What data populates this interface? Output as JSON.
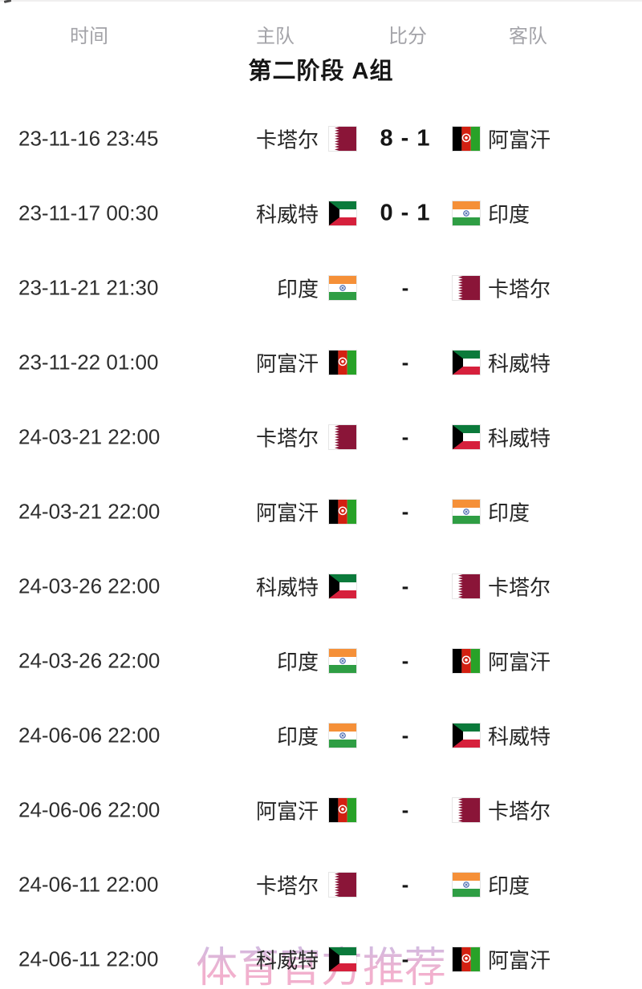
{
  "page": {
    "group_title": "第二阶段 A组",
    "watermark": "体育官方推荐"
  },
  "header": {
    "columns": [
      {
        "key": "time",
        "label": "时间"
      },
      {
        "key": "home",
        "label": "主队"
      },
      {
        "key": "score",
        "label": "比分"
      },
      {
        "key": "away",
        "label": "客队"
      }
    ]
  },
  "flags": {
    "qatar": {
      "team": "卡塔尔",
      "maroon": "#8a1538",
      "white": "#ffffff"
    },
    "afghanistan": {
      "team": "阿富汗",
      "black": "#000000",
      "red": "#d32011",
      "green": "#28a228",
      "white": "#ffffff"
    },
    "kuwait": {
      "team": "科威特",
      "green": "#0b7a3b",
      "white": "#ffffff",
      "red": "#d6203c",
      "black": "#000000"
    },
    "india": {
      "team": "印度",
      "saffron": "#f59038",
      "white": "#ffffff",
      "green": "#2f9e44",
      "navy": "#2a4fa0"
    }
  },
  "matches": [
    {
      "time": "23-11-16 23:45",
      "home": "卡塔尔",
      "home_flag": "qatar",
      "score": "8 - 1",
      "away": "阿富汗",
      "away_flag": "afghanistan"
    },
    {
      "time": "23-11-17 00:30",
      "home": "科威特",
      "home_flag": "kuwait",
      "score": "0 - 1",
      "away": "印度",
      "away_flag": "india"
    },
    {
      "time": "23-11-21 21:30",
      "home": "印度",
      "home_flag": "india",
      "score": "-",
      "away": "卡塔尔",
      "away_flag": "qatar"
    },
    {
      "time": "23-11-22 01:00",
      "home": "阿富汗",
      "home_flag": "afghanistan",
      "score": "-",
      "away": "科威特",
      "away_flag": "kuwait"
    },
    {
      "time": "24-03-21 22:00",
      "home": "卡塔尔",
      "home_flag": "qatar",
      "score": "-",
      "away": "科威特",
      "away_flag": "kuwait"
    },
    {
      "time": "24-03-21 22:00",
      "home": "阿富汗",
      "home_flag": "afghanistan",
      "score": "-",
      "away": "印度",
      "away_flag": "india"
    },
    {
      "time": "24-03-26 22:00",
      "home": "科威特",
      "home_flag": "kuwait",
      "score": "-",
      "away": "卡塔尔",
      "away_flag": "qatar"
    },
    {
      "time": "24-03-26 22:00",
      "home": "印度",
      "home_flag": "india",
      "score": "-",
      "away": "阿富汗",
      "away_flag": "afghanistan"
    },
    {
      "time": "24-06-06 22:00",
      "home": "印度",
      "home_flag": "india",
      "score": "-",
      "away": "科威特",
      "away_flag": "kuwait"
    },
    {
      "time": "24-06-06 22:00",
      "home": "阿富汗",
      "home_flag": "afghanistan",
      "score": "-",
      "away": "卡塔尔",
      "away_flag": "qatar"
    },
    {
      "time": "24-06-11 22:00",
      "home": "卡塔尔",
      "home_flag": "qatar",
      "score": "-",
      "away": "印度",
      "away_flag": "india"
    },
    {
      "time": "24-06-11 22:00",
      "home": "科威特",
      "home_flag": "kuwait",
      "score": "-",
      "away": "阿富汗",
      "away_flag": "afghanistan"
    }
  ],
  "colors": {
    "background": "#ffffff",
    "header_text": "#a3a3a8",
    "title_text": "#161616",
    "row_text": "#2d2d2d",
    "score_text": "#161616",
    "watermark_lavender": "#b9b4e6",
    "watermark_pink": "#f0a8c8",
    "top_divider": "#f0efef"
  }
}
